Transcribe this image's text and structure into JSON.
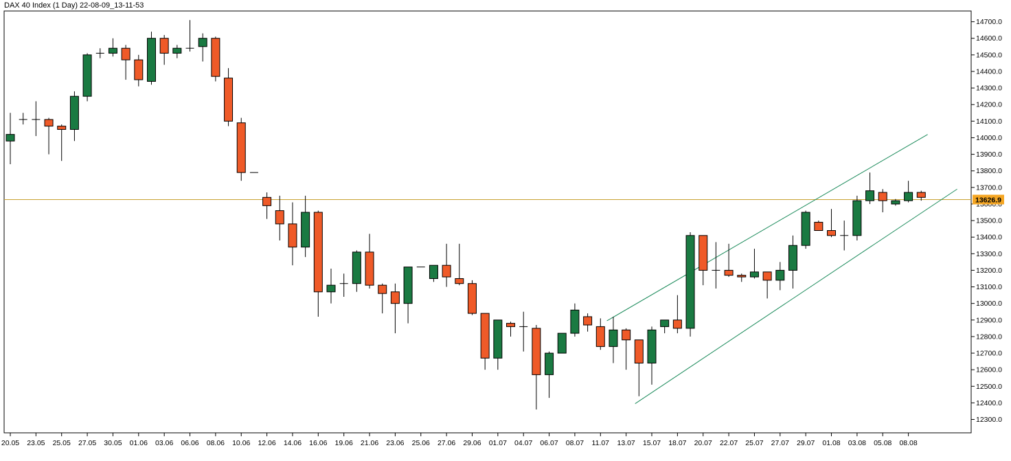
{
  "window": {
    "title": "DAX 40 Index (1 Day) 22-08-09_13-11-53"
  },
  "colors": {
    "up": "#1a7a42",
    "down": "#ef5a28",
    "wick": "#000000",
    "price_line": "#c8a030",
    "price_label_bg": "#f5a623",
    "trend_line": "#1a8a5a",
    "axis": "#000000"
  },
  "chart_data": {
    "type": "candlestick",
    "current_price_label": "13626.9",
    "current_price": 13626.9,
    "ylim": [
      12200,
      14750
    ],
    "y_ticks": [
      "12300.0",
      "12400.0",
      "12500.0",
      "12600.0",
      "12700.0",
      "12800.0",
      "12900.0",
      "13000.0",
      "13100.0",
      "13200.0",
      "13300.0",
      "13400.0",
      "13500.0",
      "13600.0",
      "13700.0",
      "13800.0",
      "13900.0",
      "14000.0",
      "14100.0",
      "14200.0",
      "14300.0",
      "14400.0",
      "14500.0",
      "14600.0",
      "14700.0"
    ],
    "x_ticks": [
      {
        "index": 0,
        "label": "20.05"
      },
      {
        "index": 2,
        "label": "23.05"
      },
      {
        "index": 4,
        "label": "25.05"
      },
      {
        "index": 6,
        "label": "27.05"
      },
      {
        "index": 8,
        "label": "30.05"
      },
      {
        "index": 10,
        "label": "01.06"
      },
      {
        "index": 12,
        "label": "03.06"
      },
      {
        "index": 14,
        "label": "06.06"
      },
      {
        "index": 16,
        "label": "08.06"
      },
      {
        "index": 18,
        "label": "10.06"
      },
      {
        "index": 20,
        "label": "12.06"
      },
      {
        "index": 22,
        "label": "14.06"
      },
      {
        "index": 24,
        "label": "16.06"
      },
      {
        "index": 26,
        "label": "19.06"
      },
      {
        "index": 28,
        "label": "21.06"
      },
      {
        "index": 30,
        "label": "23.06"
      },
      {
        "index": 32,
        "label": "25.06"
      },
      {
        "index": 34,
        "label": "27.06"
      },
      {
        "index": 36,
        "label": "29.06"
      },
      {
        "index": 38,
        "label": "01.07"
      },
      {
        "index": 40,
        "label": "04.07"
      },
      {
        "index": 42,
        "label": "06.07"
      },
      {
        "index": 44,
        "label": "08.07"
      },
      {
        "index": 46,
        "label": "11.07"
      },
      {
        "index": 48,
        "label": "13.07"
      },
      {
        "index": 50,
        "label": "15.07"
      },
      {
        "index": 52,
        "label": "18.07"
      },
      {
        "index": 54,
        "label": "20.07"
      },
      {
        "index": 56,
        "label": "22.07"
      },
      {
        "index": 58,
        "label": "25.07"
      },
      {
        "index": 60,
        "label": "27.07"
      },
      {
        "index": 62,
        "label": "29.07"
      },
      {
        "index": 64,
        "label": "01.08"
      },
      {
        "index": 66,
        "label": "03.08"
      },
      {
        "index": 68,
        "label": "05.08"
      },
      {
        "index": 70,
        "label": "08.08"
      }
    ],
    "candles": [
      {
        "o": 13980,
        "h": 14150,
        "l": 13840,
        "c": 14020
      },
      {
        "o": 14110,
        "h": 14150,
        "l": 14080,
        "c": 14110
      },
      {
        "o": 14110,
        "h": 14220,
        "l": 14010,
        "c": 14110
      },
      {
        "o": 14110,
        "h": 14120,
        "l": 13900,
        "c": 14070
      },
      {
        "o": 14070,
        "h": 14080,
        "l": 13860,
        "c": 14050
      },
      {
        "o": 14050,
        "h": 14280,
        "l": 13980,
        "c": 14250
      },
      {
        "o": 14250,
        "h": 14510,
        "l": 14220,
        "c": 14500
      },
      {
        "o": 14510,
        "h": 14540,
        "l": 14480,
        "c": 14510
      },
      {
        "o": 14510,
        "h": 14600,
        "l": 14490,
        "c": 14540
      },
      {
        "o": 14540,
        "h": 14560,
        "l": 14350,
        "c": 14470
      },
      {
        "o": 14470,
        "h": 14500,
        "l": 14310,
        "c": 14350
      },
      {
        "o": 14340,
        "h": 14640,
        "l": 14320,
        "c": 14600
      },
      {
        "o": 14600,
        "h": 14620,
        "l": 14440,
        "c": 14510
      },
      {
        "o": 14510,
        "h": 14560,
        "l": 14480,
        "c": 14540
      },
      {
        "o": 14540,
        "h": 14710,
        "l": 14520,
        "c": 14540
      },
      {
        "o": 14550,
        "h": 14630,
        "l": 14460,
        "c": 14600
      },
      {
        "o": 14600,
        "h": 14610,
        "l": 14340,
        "c": 14370
      },
      {
        "o": 14360,
        "h": 14420,
        "l": 14070,
        "c": 14100
      },
      {
        "o": 14090,
        "h": 14120,
        "l": 13740,
        "c": 13790
      },
      {
        "o": 13790,
        "h": 13790,
        "l": 13790,
        "c": 13790
      },
      {
        "o": 13640,
        "h": 13670,
        "l": 13510,
        "c": 13590
      },
      {
        "o": 13560,
        "h": 13650,
        "l": 13380,
        "c": 13480
      },
      {
        "o": 13480,
        "h": 13610,
        "l": 13230,
        "c": 13340
      },
      {
        "o": 13340,
        "h": 13650,
        "l": 13280,
        "c": 13550
      },
      {
        "o": 13550,
        "h": 13560,
        "l": 12920,
        "c": 13070
      },
      {
        "o": 13070,
        "h": 13210,
        "l": 13000,
        "c": 13110
      },
      {
        "o": 13120,
        "h": 13180,
        "l": 13040,
        "c": 13120
      },
      {
        "o": 13120,
        "h": 13320,
        "l": 13070,
        "c": 13310
      },
      {
        "o": 13310,
        "h": 13420,
        "l": 13090,
        "c": 13110
      },
      {
        "o": 13110,
        "h": 13120,
        "l": 12940,
        "c": 13060
      },
      {
        "o": 13070,
        "h": 13120,
        "l": 12820,
        "c": 13000
      },
      {
        "o": 13000,
        "h": 13220,
        "l": 12880,
        "c": 13220
      },
      {
        "o": 13220,
        "h": 13220,
        "l": 13220,
        "c": 13220
      },
      {
        "o": 13150,
        "h": 13230,
        "l": 13130,
        "c": 13230
      },
      {
        "o": 13230,
        "h": 13360,
        "l": 13100,
        "c": 13160
      },
      {
        "o": 13150,
        "h": 13360,
        "l": 13110,
        "c": 13120
      },
      {
        "o": 13120,
        "h": 13140,
        "l": 12930,
        "c": 12940
      },
      {
        "o": 12940,
        "h": 12940,
        "l": 12600,
        "c": 12670
      },
      {
        "o": 12670,
        "h": 12900,
        "l": 12600,
        "c": 12900
      },
      {
        "o": 12880,
        "h": 12890,
        "l": 12800,
        "c": 12860
      },
      {
        "o": 12860,
        "h": 12950,
        "l": 12710,
        "c": 12860
      },
      {
        "o": 12850,
        "h": 12870,
        "l": 12360,
        "c": 12570
      },
      {
        "o": 12570,
        "h": 12710,
        "l": 12430,
        "c": 12700
      },
      {
        "o": 12700,
        "h": 12820,
        "l": 12700,
        "c": 12820
      },
      {
        "o": 12820,
        "h": 13000,
        "l": 12800,
        "c": 12960
      },
      {
        "o": 12920,
        "h": 12940,
        "l": 12830,
        "c": 12870
      },
      {
        "o": 12860,
        "h": 12910,
        "l": 12720,
        "c": 12740
      },
      {
        "o": 12740,
        "h": 12920,
        "l": 12640,
        "c": 12840
      },
      {
        "o": 12840,
        "h": 12850,
        "l": 12600,
        "c": 12780
      },
      {
        "o": 12780,
        "h": 12770,
        "l": 12440,
        "c": 12640
      },
      {
        "o": 12640,
        "h": 12860,
        "l": 12510,
        "c": 12840
      },
      {
        "o": 12860,
        "h": 12900,
        "l": 12820,
        "c": 12900
      },
      {
        "o": 12900,
        "h": 13050,
        "l": 12820,
        "c": 12850
      },
      {
        "o": 12850,
        "h": 13430,
        "l": 12800,
        "c": 13410
      },
      {
        "o": 13410,
        "h": 13410,
        "l": 13110,
        "c": 13200
      },
      {
        "o": 13200,
        "h": 13370,
        "l": 13090,
        "c": 13200
      },
      {
        "o": 13200,
        "h": 13360,
        "l": 13160,
        "c": 13170
      },
      {
        "o": 13170,
        "h": 13180,
        "l": 13130,
        "c": 13160
      },
      {
        "o": 13160,
        "h": 13330,
        "l": 13150,
        "c": 13190
      },
      {
        "o": 13190,
        "h": 13190,
        "l": 13030,
        "c": 13140
      },
      {
        "o": 13140,
        "h": 13250,
        "l": 13080,
        "c": 13200
      },
      {
        "o": 13200,
        "h": 13410,
        "l": 13090,
        "c": 13350
      },
      {
        "o": 13350,
        "h": 13560,
        "l": 13330,
        "c": 13550
      },
      {
        "o": 13490,
        "h": 13500,
        "l": 13440,
        "c": 13440
      },
      {
        "o": 13440,
        "h": 13570,
        "l": 13400,
        "c": 13410
      },
      {
        "o": 13410,
        "h": 13500,
        "l": 13320,
        "c": 13410
      },
      {
        "o": 13410,
        "h": 13650,
        "l": 13380,
        "c": 13620
      },
      {
        "o": 13620,
        "h": 13790,
        "l": 13600,
        "c": 13680
      },
      {
        "o": 13670,
        "h": 13690,
        "l": 13550,
        "c": 13620
      },
      {
        "o": 13600,
        "h": 13630,
        "l": 13590,
        "c": 13620
      },
      {
        "o": 13620,
        "h": 13740,
        "l": 13610,
        "c": 13670
      },
      {
        "o": 13670,
        "h": 13680,
        "l": 13620,
        "c": 13640
      }
    ],
    "trend_lines": [
      {
        "x1": 46.5,
        "y1": 12895,
        "x2": 71.5,
        "y2": 14020
      },
      {
        "x1": 48.7,
        "y1": 12395,
        "x2": 73.8,
        "y2": 13690
      }
    ]
  }
}
